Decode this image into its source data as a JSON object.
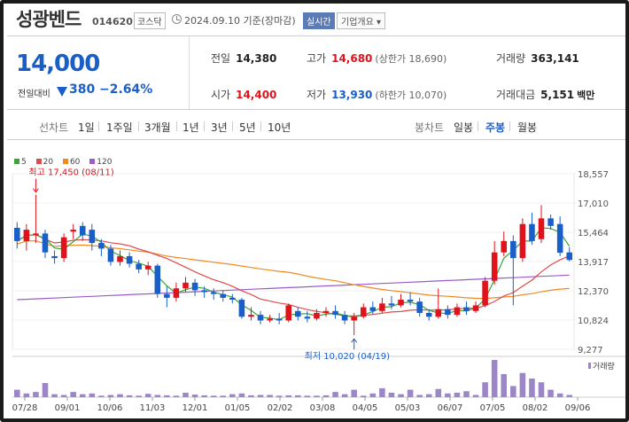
{
  "header": {
    "stock_name": "성광벤드",
    "stock_code": "014620",
    "market_badge": "코스닥",
    "base_date": "2024.09.10 기준(장마감)",
    "realtime_badge": "실시간",
    "company_button": "기업개요 ▾"
  },
  "quote": {
    "current_price": "14,000",
    "change_label": "전일대비",
    "change_value": "380",
    "change_pct": "−2.64%",
    "prev_close_label": "전일",
    "prev_close": "14,380",
    "open_label": "시가",
    "open": "14,400",
    "high_label": "고가",
    "high": "14,680",
    "upper_limit": "(상한가 18,690)",
    "low_label": "저가",
    "low": "13,930",
    "lower_limit": "(하한가 10,070)",
    "volume_label": "거래량",
    "volume": "363,141",
    "amount_label": "거래대금",
    "amount": "5,151",
    "amount_unit": "백만"
  },
  "tabs": {
    "line_chart_label": "선차트",
    "periods": [
      "1일",
      "1주일",
      "3개월",
      "1년",
      "3년",
      "5년",
      "10년"
    ],
    "candle_label": "봉차트",
    "candles": [
      "일봉",
      "주봉",
      "월봉"
    ],
    "active_candle": "주봉"
  },
  "colors": {
    "up": "#e0121c",
    "down": "#1a5fc8",
    "ma5": "#3aa63a",
    "ma20": "#e04a4a",
    "ma60": "#f08a24",
    "ma120": "#9a5cc8",
    "volume": "#9c86c8"
  },
  "chart_data": {
    "type": "candlestick",
    "legend": [
      "5",
      "20",
      "60",
      "120"
    ],
    "y_ticks": [
      "18,557",
      "17,010",
      "15,464",
      "13,917",
      "12,370",
      "10,824",
      "9,277"
    ],
    "ylim": [
      9277,
      18557
    ],
    "x_ticks": [
      "07/28",
      "09/01",
      "10/06",
      "11/03",
      "12/01",
      "01/05",
      "02/02",
      "03/08",
      "04/05",
      "05/03",
      "06/07",
      "07/05",
      "08/02",
      "09/06"
    ],
    "high_annotation": "최고 17,450 (08/11)",
    "low_annotation": "최저 10,020 (04/19)",
    "volume_label": "거래량",
    "candles": [
      {
        "o": 15700,
        "c": 15000,
        "h": 16000,
        "l": 14600
      },
      {
        "o": 15000,
        "c": 15600,
        "h": 15900,
        "l": 14500
      },
      {
        "o": 15300,
        "c": 15400,
        "h": 17450,
        "l": 14900
      },
      {
        "o": 15400,
        "c": 14400,
        "h": 15600,
        "l": 14100
      },
      {
        "o": 14200,
        "c": 14100,
        "h": 14500,
        "l": 13800
      },
      {
        "o": 14100,
        "c": 15200,
        "h": 15400,
        "l": 13900
      },
      {
        "o": 15500,
        "c": 15600,
        "h": 15900,
        "l": 15100
      },
      {
        "o": 15800,
        "c": 15300,
        "h": 16000,
        "l": 15000
      },
      {
        "o": 15600,
        "c": 14900,
        "h": 15900,
        "l": 14500
      },
      {
        "o": 14900,
        "c": 14600,
        "h": 15100,
        "l": 14200
      },
      {
        "o": 14600,
        "c": 13900,
        "h": 14800,
        "l": 13700
      },
      {
        "o": 13900,
        "c": 14200,
        "h": 14500,
        "l": 13700
      },
      {
        "o": 14200,
        "c": 13800,
        "h": 14400,
        "l": 13600
      },
      {
        "o": 13800,
        "c": 13500,
        "h": 14000,
        "l": 13300
      },
      {
        "o": 13500,
        "c": 13700,
        "h": 13900,
        "l": 13200
      },
      {
        "o": 13700,
        "c": 12200,
        "h": 13800,
        "l": 12000
      },
      {
        "o": 12200,
        "c": 12000,
        "h": 12600,
        "l": 11500
      },
      {
        "o": 12000,
        "c": 12500,
        "h": 12800,
        "l": 11800
      },
      {
        "o": 12500,
        "c": 12800,
        "h": 13100,
        "l": 12300
      },
      {
        "o": 12800,
        "c": 12400,
        "h": 13000,
        "l": 12100
      },
      {
        "o": 12400,
        "c": 12300,
        "h": 12600,
        "l": 12000
      },
      {
        "o": 12300,
        "c": 12200,
        "h": 12500,
        "l": 11900
      },
      {
        "o": 12200,
        "c": 12000,
        "h": 12400,
        "l": 11800
      },
      {
        "o": 12000,
        "c": 11900,
        "h": 12200,
        "l": 11700
      },
      {
        "o": 11900,
        "c": 11000,
        "h": 12000,
        "l": 10900
      },
      {
        "o": 11000,
        "c": 11100,
        "h": 11500,
        "l": 10800
      },
      {
        "o": 11100,
        "c": 10800,
        "h": 11300,
        "l": 10600
      },
      {
        "o": 10800,
        "c": 10900,
        "h": 11100,
        "l": 10700
      },
      {
        "o": 10900,
        "c": 10800,
        "h": 11200,
        "l": 10600
      },
      {
        "o": 10800,
        "c": 11600,
        "h": 11700,
        "l": 10700
      },
      {
        "o": 11300,
        "c": 11000,
        "h": 11500,
        "l": 10800
      },
      {
        "o": 11000,
        "c": 10900,
        "h": 11300,
        "l": 10700
      },
      {
        "o": 10900,
        "c": 11200,
        "h": 11400,
        "l": 10800
      },
      {
        "o": 11200,
        "c": 11300,
        "h": 11500,
        "l": 11000
      },
      {
        "o": 11300,
        "c": 11100,
        "h": 11600,
        "l": 10900
      },
      {
        "o": 11100,
        "c": 10800,
        "h": 11300,
        "l": 10600
      },
      {
        "o": 10800,
        "c": 11000,
        "h": 11200,
        "l": 10020
      },
      {
        "o": 11000,
        "c": 11500,
        "h": 11700,
        "l": 10900
      },
      {
        "o": 11500,
        "c": 11300,
        "h": 11800,
        "l": 11100
      },
      {
        "o": 11300,
        "c": 11700,
        "h": 12000,
        "l": 11200
      },
      {
        "o": 11700,
        "c": 11600,
        "h": 12100,
        "l": 11400
      },
      {
        "o": 11600,
        "c": 11900,
        "h": 12200,
        "l": 11500
      },
      {
        "o": 11900,
        "c": 11800,
        "h": 12300,
        "l": 11600
      },
      {
        "o": 11800,
        "c": 11200,
        "h": 12000,
        "l": 11000
      },
      {
        "o": 11200,
        "c": 11000,
        "h": 11400,
        "l": 10800
      },
      {
        "o": 11000,
        "c": 11400,
        "h": 12500,
        "l": 10900
      },
      {
        "o": 11400,
        "c": 11100,
        "h": 11600,
        "l": 10900
      },
      {
        "o": 11100,
        "c": 11500,
        "h": 11700,
        "l": 11000
      },
      {
        "o": 11500,
        "c": 11300,
        "h": 11800,
        "l": 11100
      },
      {
        "o": 11300,
        "c": 11600,
        "h": 11800,
        "l": 11200
      },
      {
        "o": 11600,
        "c": 12900,
        "h": 13100,
        "l": 11500
      },
      {
        "o": 12900,
        "c": 14400,
        "h": 15000,
        "l": 12700
      },
      {
        "o": 14400,
        "c": 15000,
        "h": 15500,
        "l": 14200
      },
      {
        "o": 15000,
        "c": 14100,
        "h": 15300,
        "l": 11600
      },
      {
        "o": 14100,
        "c": 15900,
        "h": 16200,
        "l": 13900
      },
      {
        "o": 15900,
        "c": 15000,
        "h": 16500,
        "l": 14800
      },
      {
        "o": 15100,
        "c": 16200,
        "h": 16900,
        "l": 14900
      },
      {
        "o": 16200,
        "c": 15800,
        "h": 16400,
        "l": 15600
      },
      {
        "o": 15900,
        "c": 14380,
        "h": 16300,
        "l": 14200
      },
      {
        "o": 14400,
        "c": 14000,
        "h": 14680,
        "l": 13930
      }
    ],
    "volumes": [
      20,
      10,
      14,
      38,
      8,
      6,
      14,
      8,
      10,
      4,
      6,
      8,
      5,
      4,
      9,
      6,
      5,
      4,
      12,
      7,
      5,
      4,
      4,
      8,
      10,
      5,
      6,
      6,
      4,
      5,
      5,
      4,
      4,
      5,
      14,
      8,
      20,
      4,
      10,
      24,
      12,
      8,
      20,
      6,
      8,
      22,
      10,
      12,
      16,
      6,
      40,
      100,
      62,
      30,
      65,
      50,
      40,
      20,
      10,
      6
    ]
  }
}
